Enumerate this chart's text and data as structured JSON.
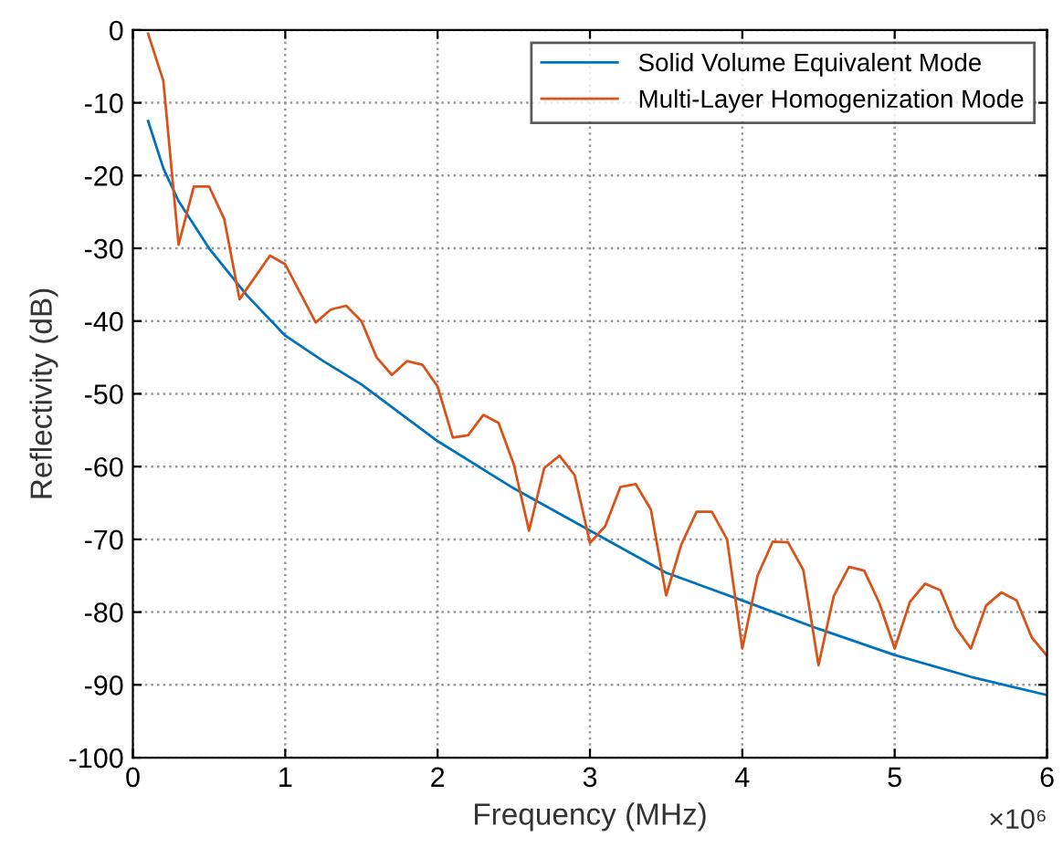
{
  "chart_data": {
    "type": "line",
    "xlabel": "Frequency (MHz)",
    "ylabel": "Reflectivity (dB)",
    "annotations": [
      "×10⁶"
    ],
    "series": [
      {
        "name": "Solid Volume Equivalent Mode",
        "color": "#0072bd",
        "x": [
          0.1,
          0.2,
          0.3,
          0.5,
          0.75,
          1.0,
          1.25,
          1.5,
          2.0,
          2.5,
          3.0,
          3.5,
          4.0,
          4.5,
          5.0,
          5.5,
          6.0
        ],
        "values": [
          -12.5,
          -19,
          -23.5,
          -30,
          -36.5,
          -42,
          -45.5,
          -48.7,
          -56.5,
          -63,
          -68.8,
          -74.6,
          -78.4,
          -82.3,
          -85.9,
          -88.9,
          -91.4
        ]
      },
      {
        "name": "Multi-Layer Homogenization Mode",
        "color": "#d95319",
        "x": [
          0.1,
          0.2,
          0.3,
          0.4,
          0.5,
          0.6,
          0.7,
          0.9,
          1.0,
          1.2,
          1.3,
          1.4,
          1.5,
          1.6,
          1.7,
          1.8,
          1.9,
          2.0,
          2.1,
          2.2,
          2.3,
          2.4,
          2.5,
          2.6,
          2.7,
          2.8,
          2.9,
          3.0,
          3.1,
          3.2,
          3.3,
          3.4,
          3.5,
          3.6,
          3.7,
          3.8,
          3.9,
          4.0,
          4.1,
          4.2,
          4.3,
          4.4,
          4.5,
          4.6,
          4.7,
          4.8,
          4.9,
          5.0,
          5.1,
          5.2,
          5.3,
          5.4,
          5.5,
          5.6,
          5.7,
          5.8,
          5.9,
          6.0
        ],
        "values": [
          -0.5,
          -7,
          -29.5,
          -21.5,
          -21.5,
          -26,
          -37,
          -31,
          -32.2,
          -40.2,
          -38.4,
          -37.9,
          -40,
          -45,
          -47.4,
          -45.5,
          -46,
          -49,
          -56,
          -55.7,
          -52.9,
          -54,
          -59.7,
          -68.8,
          -60.2,
          -58.5,
          -61.2,
          -70.5,
          -68.2,
          -62.8,
          -62.4,
          -65.9,
          -77.7,
          -70.7,
          -66.2,
          -66.2,
          -70,
          -85,
          -75,
          -70.3,
          -70.4,
          -74.2,
          -87.3,
          -77.8,
          -73.8,
          -74.3,
          -78.8,
          -85,
          -78.6,
          -76.1,
          -77,
          -82.1,
          -85,
          -79.1,
          -77.3,
          -78.4,
          -83.5,
          -86
        ]
      }
    ],
    "xlim": [
      0,
      6
    ],
    "xticks": [
      0,
      1,
      2,
      3,
      4,
      5,
      6
    ],
    "ylim": [
      -100,
      0
    ],
    "yticks": [
      -100,
      -90,
      -80,
      -70,
      -60,
      -50,
      -40,
      -30,
      -20,
      -10,
      0
    ],
    "grid": true,
    "legend": "top right",
    "line_style": "solid"
  }
}
